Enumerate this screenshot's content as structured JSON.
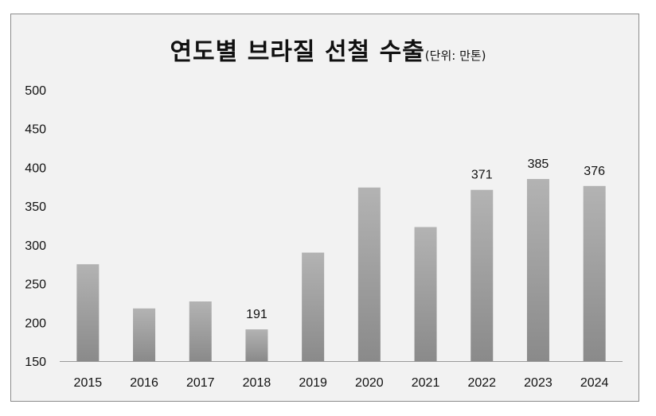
{
  "chart_data": {
    "type": "bar",
    "title": "연도별 브라질 선철 수출",
    "unit_label": "(단위: 만톤)",
    "xlabel": "",
    "ylabel": "",
    "categories": [
      "2015",
      "2016",
      "2017",
      "2018",
      "2019",
      "2020",
      "2021",
      "2022",
      "2023",
      "2024"
    ],
    "values": [
      275,
      218,
      227,
      191,
      290,
      374,
      323,
      371,
      385,
      376
    ],
    "data_labels": [
      "",
      "",
      "",
      "191",
      "",
      "",
      "",
      "371",
      "385",
      "376"
    ],
    "ylim": [
      150,
      500
    ],
    "yticks": [
      150,
      200,
      250,
      300,
      350,
      400,
      450,
      500
    ],
    "grid": false,
    "colors": {
      "bar_top": "#b3b3b3",
      "bar_bottom": "#8a8a8a",
      "background": "#f2f2f2"
    }
  }
}
